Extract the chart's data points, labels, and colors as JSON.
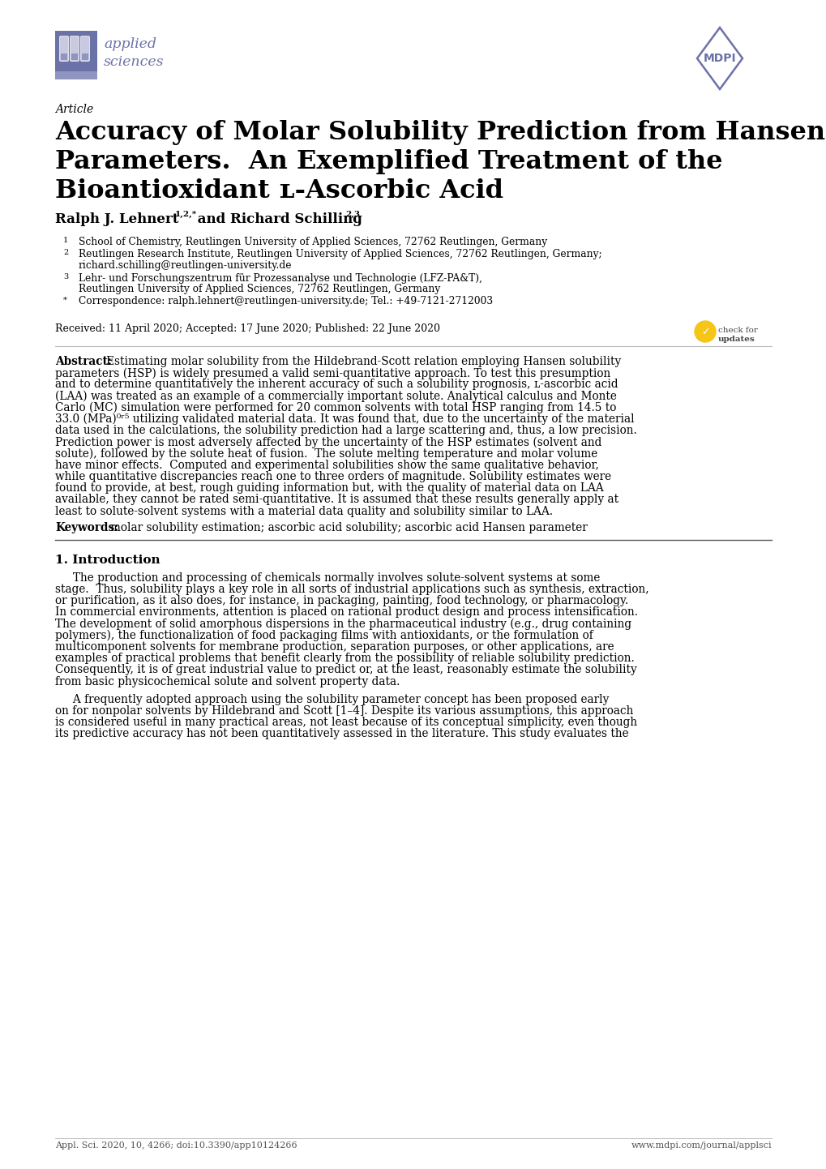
{
  "page_bg": "#ffffff",
  "title_line1": "Accuracy of Molar Solubility Prediction from Hansen",
  "title_line2": "Parameters.  An Exemplified Treatment of the",
  "title_line3": "Bioantioxidant ʟ-Ascorbic Acid",
  "article_label": "Article",
  "received": "Received: 11 April 2020; Accepted: 17 June 2020; Published: 22 June 2020",
  "footer_left": "Appl. Sci. 2020, 10, 4266; doi:10.3390/app10124266",
  "footer_right": "www.mdpi.com/journal/applsci",
  "logo_color": "#6b72a8",
  "text_color": "#000000"
}
